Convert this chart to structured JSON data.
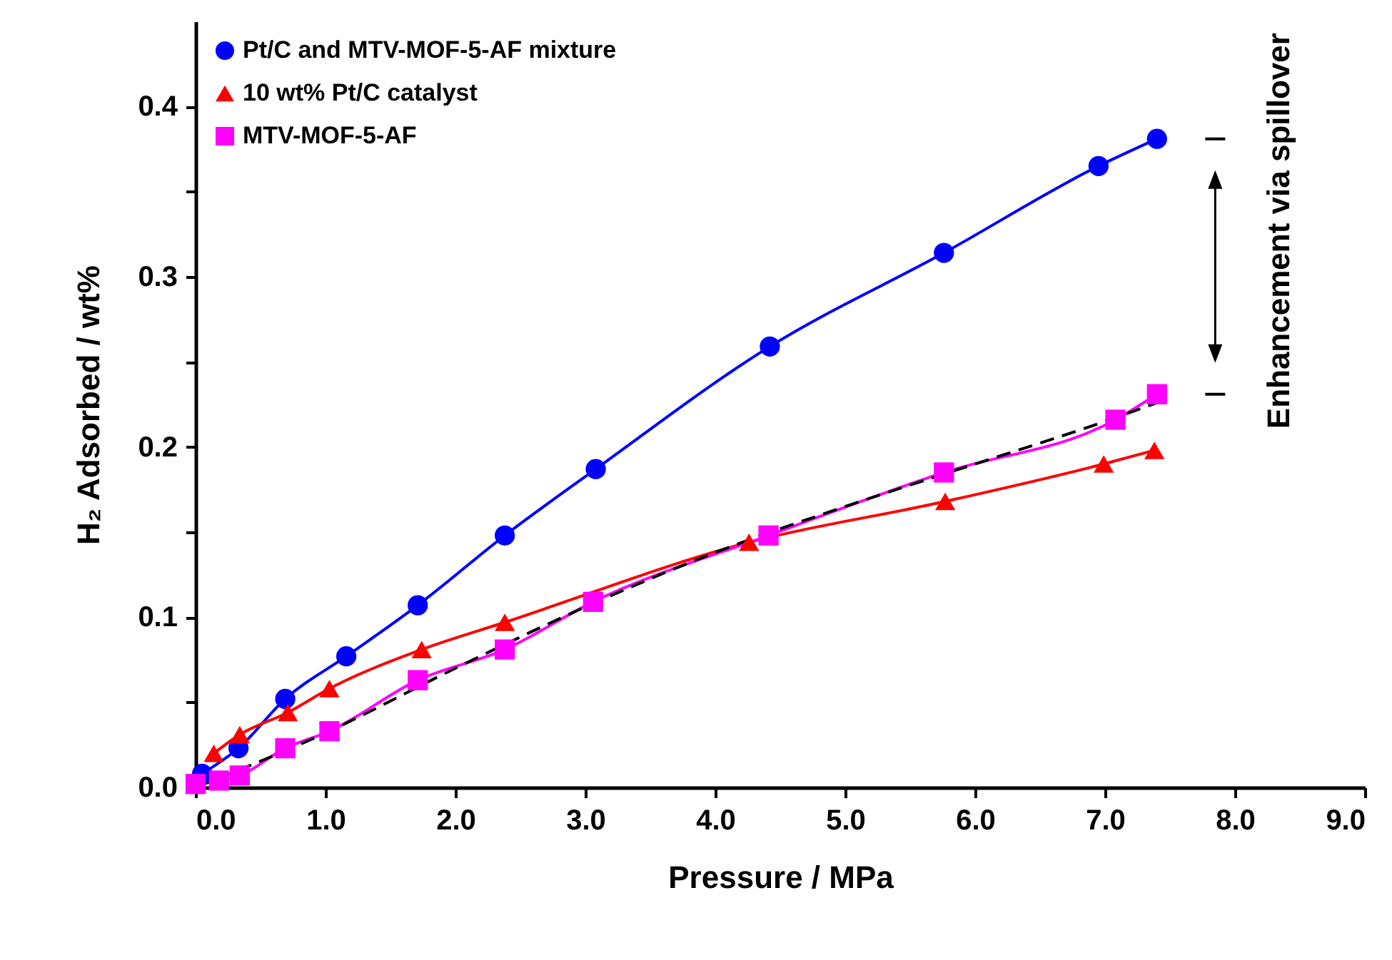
{
  "chart_data": {
    "type": "line",
    "xlabel": "Pressure / MPa",
    "ylabel": "H₂ Adsorbed / wt%",
    "xlim": [
      0,
      9
    ],
    "ylim": [
      0,
      0.45
    ],
    "xticks": [
      {
        "value": 0,
        "label": "0.0"
      },
      {
        "value": 1,
        "label": "1.0"
      },
      {
        "value": 2,
        "label": "2.0"
      },
      {
        "value": 3,
        "label": "3.0"
      },
      {
        "value": 4,
        "label": "4.0"
      },
      {
        "value": 5,
        "label": "5.0"
      },
      {
        "value": 6,
        "label": "6.0"
      },
      {
        "value": 7,
        "label": "7.0"
      },
      {
        "value": 8,
        "label": "8.0"
      },
      {
        "value": 9,
        "label": "9.0"
      }
    ],
    "yticks": [
      {
        "value": 0,
        "label": "0.0"
      },
      {
        "value": 0.05,
        "label": null
      },
      {
        "value": 0.1,
        "label": "0.1"
      },
      {
        "value": 0.15,
        "label": null
      },
      {
        "value": 0.2,
        "label": "0.2"
      },
      {
        "value": 0.25,
        "label": null
      },
      {
        "value": 0.3,
        "label": "0.3"
      },
      {
        "value": 0.35,
        "label": null
      },
      {
        "value": 0.4,
        "label": "0.4"
      }
    ],
    "grid": false,
    "legend": "top left",
    "annotations": [
      "Enhancement via spillover"
    ],
    "series": [
      {
        "name": "Pt/C and MTV-MOF-5-AF mixture",
        "color": "#0000ff",
        "marker": "circle",
        "x": [
          0.05,
          0.33,
          0.69,
          1.16,
          1.71,
          2.38,
          3.08,
          4.42,
          5.76,
          6.95,
          7.4
        ],
        "values": [
          0.008,
          0.023,
          0.052,
          0.077,
          0.107,
          0.148,
          0.187,
          0.259,
          0.314,
          0.365,
          0.381
        ]
      },
      {
        "name": "10 wt% Pt/C catalyst",
        "color": "#ff0000",
        "marker": "triangle",
        "x": [
          0.14,
          0.34,
          0.71,
          1.03,
          1.74,
          2.38,
          4.26,
          5.77,
          6.99,
          7.38
        ],
        "values": [
          0.02,
          0.031,
          0.044,
          0.058,
          0.081,
          0.097,
          0.144,
          0.168,
          0.19,
          0.198
        ]
      },
      {
        "name": "MTV-MOF-5-AF",
        "color": "#ff00ff",
        "marker": "square",
        "x": [
          0,
          0.18,
          0.34,
          0.69,
          1.03,
          1.71,
          2.38,
          3.06,
          4.41,
          5.76,
          7.08,
          7.4
        ],
        "values": [
          0.002,
          0.004,
          0.007,
          0.023,
          0.033,
          0.063,
          0.081,
          0.109,
          0.148,
          0.185,
          0.216,
          0.231
        ]
      },
      {
        "color": "#000000",
        "marker": "none",
        "line_style": "dashed",
        "x": [
          0,
          1,
          2,
          3,
          4,
          5,
          6,
          7,
          7.4
        ],
        "values": [
          0,
          0.032,
          0.07,
          0.106,
          0.138,
          0.165,
          0.19,
          0.215,
          0.226
        ]
      }
    ]
  }
}
